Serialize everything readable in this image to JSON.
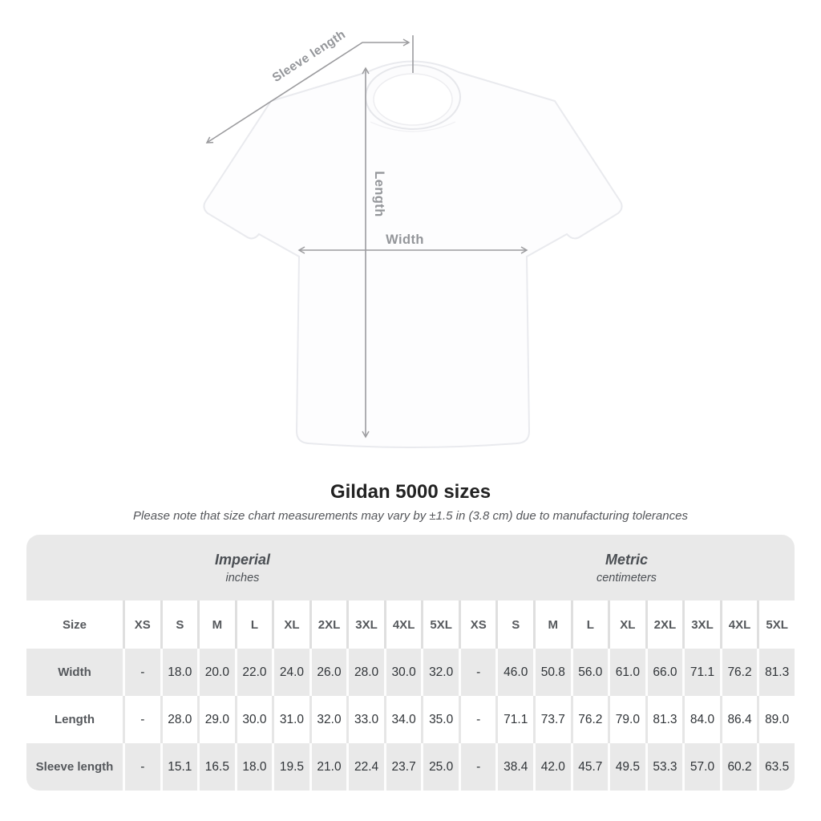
{
  "colors": {
    "annotation": "#9b9b9e",
    "band_background": "#e9e9e9",
    "row_alternate_background": "#e9e9e9",
    "title": "#222222"
  },
  "diagram": {
    "sleeve_length_label": "Sleeve length",
    "length_label": "Length",
    "width_label": "Width"
  },
  "heading": {
    "title": "Gildan 5000 sizes",
    "subtitle": "Please note that size chart measurements may vary by ±1.5 in (3.8 cm) due to manufacturing tolerances"
  },
  "chart_data": {
    "type": "table",
    "title": "Gildan 5000 sizes",
    "note": "Please note that size chart measurements may vary by ±1.5 in (3.8 cm) due to manufacturing tolerances",
    "units": [
      {
        "label": "Imperial",
        "sublabel": "inches",
        "span": 10
      },
      {
        "label": "Metric",
        "sublabel": "centimeters",
        "span": 9
      }
    ],
    "corner": "Size",
    "size_columns": [
      "XS",
      "S",
      "M",
      "L",
      "XL",
      "2XL",
      "3XL",
      "4XL",
      "5XL",
      "XS",
      "S",
      "M",
      "L",
      "XL",
      "2XL",
      "3XL",
      "4XL",
      "5XL"
    ],
    "rows": [
      {
        "label": "Width",
        "values": [
          "-",
          "18.0",
          "20.0",
          "22.0",
          "24.0",
          "26.0",
          "28.0",
          "30.0",
          "32.0",
          "-",
          "46.0",
          "50.8",
          "56.0",
          "61.0",
          "66.0",
          "71.1",
          "76.2",
          "81.3"
        ]
      },
      {
        "label": "Length",
        "values": [
          "-",
          "28.0",
          "29.0",
          "30.0",
          "31.0",
          "32.0",
          "33.0",
          "34.0",
          "35.0",
          "-",
          "71.1",
          "73.7",
          "76.2",
          "79.0",
          "81.3",
          "84.0",
          "86.4",
          "89.0"
        ]
      },
      {
        "label": "Sleeve length",
        "values": [
          "-",
          "15.1",
          "16.5",
          "18.0",
          "19.5",
          "21.0",
          "22.4",
          "23.7",
          "25.0",
          "-",
          "38.4",
          "42.0",
          "45.7",
          "49.5",
          "53.3",
          "57.0",
          "60.2",
          "63.5"
        ]
      }
    ]
  }
}
